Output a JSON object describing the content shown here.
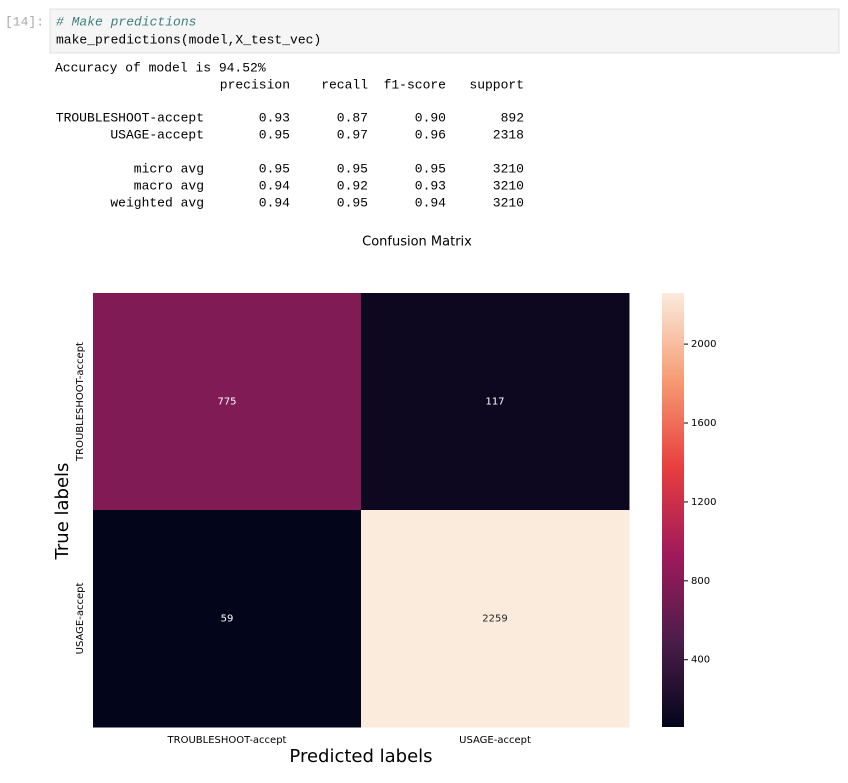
{
  "cell": {
    "prompt": "[14]:",
    "comment": "# Make predictions",
    "code": "make_predictions(model,X_test_vec)"
  },
  "output": {
    "accuracy": "Accuracy of model is 94.52%",
    "report": {
      "header": [
        "precision",
        "recall",
        "f1-score",
        "support"
      ],
      "rows": [
        [
          "TROUBLESHOOT-accept",
          "0.93",
          "0.87",
          "0.90",
          "892"
        ],
        [
          "USAGE-accept",
          "0.95",
          "0.97",
          "0.96",
          "2318"
        ],
        [
          "micro avg",
          "0.95",
          "0.95",
          "0.95",
          "3210"
        ],
        [
          "macro avg",
          "0.94",
          "0.92",
          "0.93",
          "3210"
        ],
        [
          "weighted avg",
          "0.94",
          "0.95",
          "0.94",
          "3210"
        ]
      ]
    }
  },
  "chart_data": {
    "type": "heatmap",
    "title": "Confusion Matrix",
    "xlabel": "Predicted labels",
    "ylabel": "True labels",
    "x_categories": [
      "TROUBLESHOOT-accept",
      "USAGE-accept"
    ],
    "y_categories": [
      "TROUBLESHOOT-accept",
      "USAGE-accept"
    ],
    "values": [
      [
        775,
        117
      ],
      [
        59,
        2259
      ]
    ],
    "colorbar_lim": [
      59,
      2259
    ],
    "colorbar_ticks": [
      400,
      800,
      1200,
      1600,
      2000
    ],
    "colors": [
      "#03051a",
      "#4c1d4b",
      "#a11a5b",
      "#e83f3f",
      "#f69c73",
      "#faebdd"
    ]
  }
}
